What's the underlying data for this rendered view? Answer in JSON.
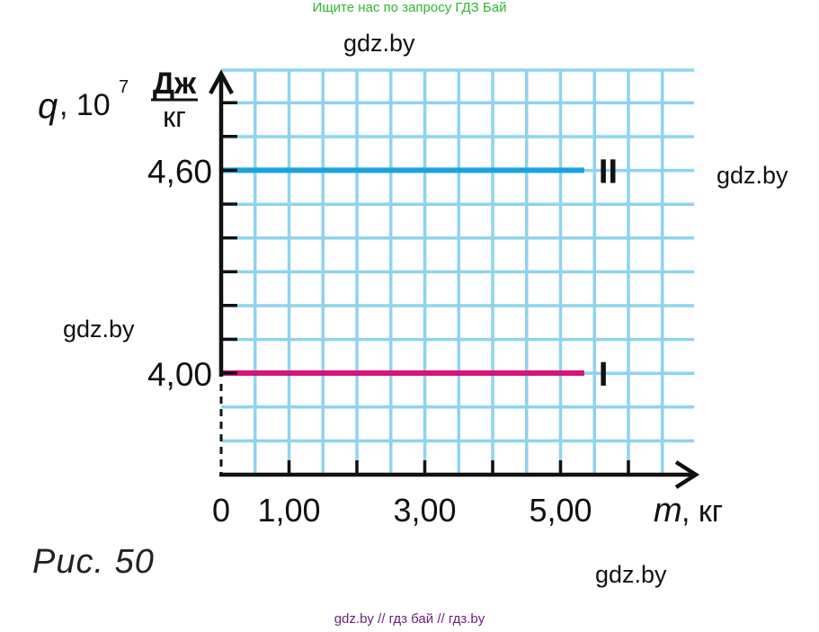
{
  "banner_top": "Ищите нас по запросу ГДЗ Бай",
  "banner_bottom": "gdz.by  //  гдз бай  //  гдз.by",
  "watermarks": [
    "gdz.by",
    "gdz.by",
    "gdz.by",
    "gdz.by"
  ],
  "caption": "Рис. 50",
  "chart_data": {
    "type": "line",
    "y_axis": {
      "symbol": "q",
      "multiplier": ", 10",
      "exponent": "7",
      "unit_numerator": "Дж",
      "unit_denominator": "кг",
      "labeled_ticks": [
        {
          "value": 4.0,
          "label": "4,00"
        },
        {
          "value": 4.6,
          "label": "4,60"
        }
      ],
      "tick_step": 0.1,
      "broken_below": 4.0
    },
    "x_axis": {
      "symbol": "m",
      "unit": ", кг",
      "range": [
        0,
        7
      ],
      "tick_step": 1,
      "labeled_ticks": [
        {
          "value": 0,
          "label": "0"
        },
        {
          "value": 1,
          "label": "1,00"
        },
        {
          "value": 3,
          "label": "3,00"
        },
        {
          "value": 5,
          "label": "5,00"
        }
      ]
    },
    "grid": true,
    "grid_color": "#8fd3ec",
    "series": [
      {
        "name": "II",
        "x": [
          0,
          5.35
        ],
        "y": [
          4.6,
          4.6
        ],
        "color": "#1aa3de"
      },
      {
        "name": "I",
        "x": [
          0,
          5.35
        ],
        "y": [
          4.0,
          4.0
        ],
        "color": "#d6147d"
      }
    ]
  }
}
